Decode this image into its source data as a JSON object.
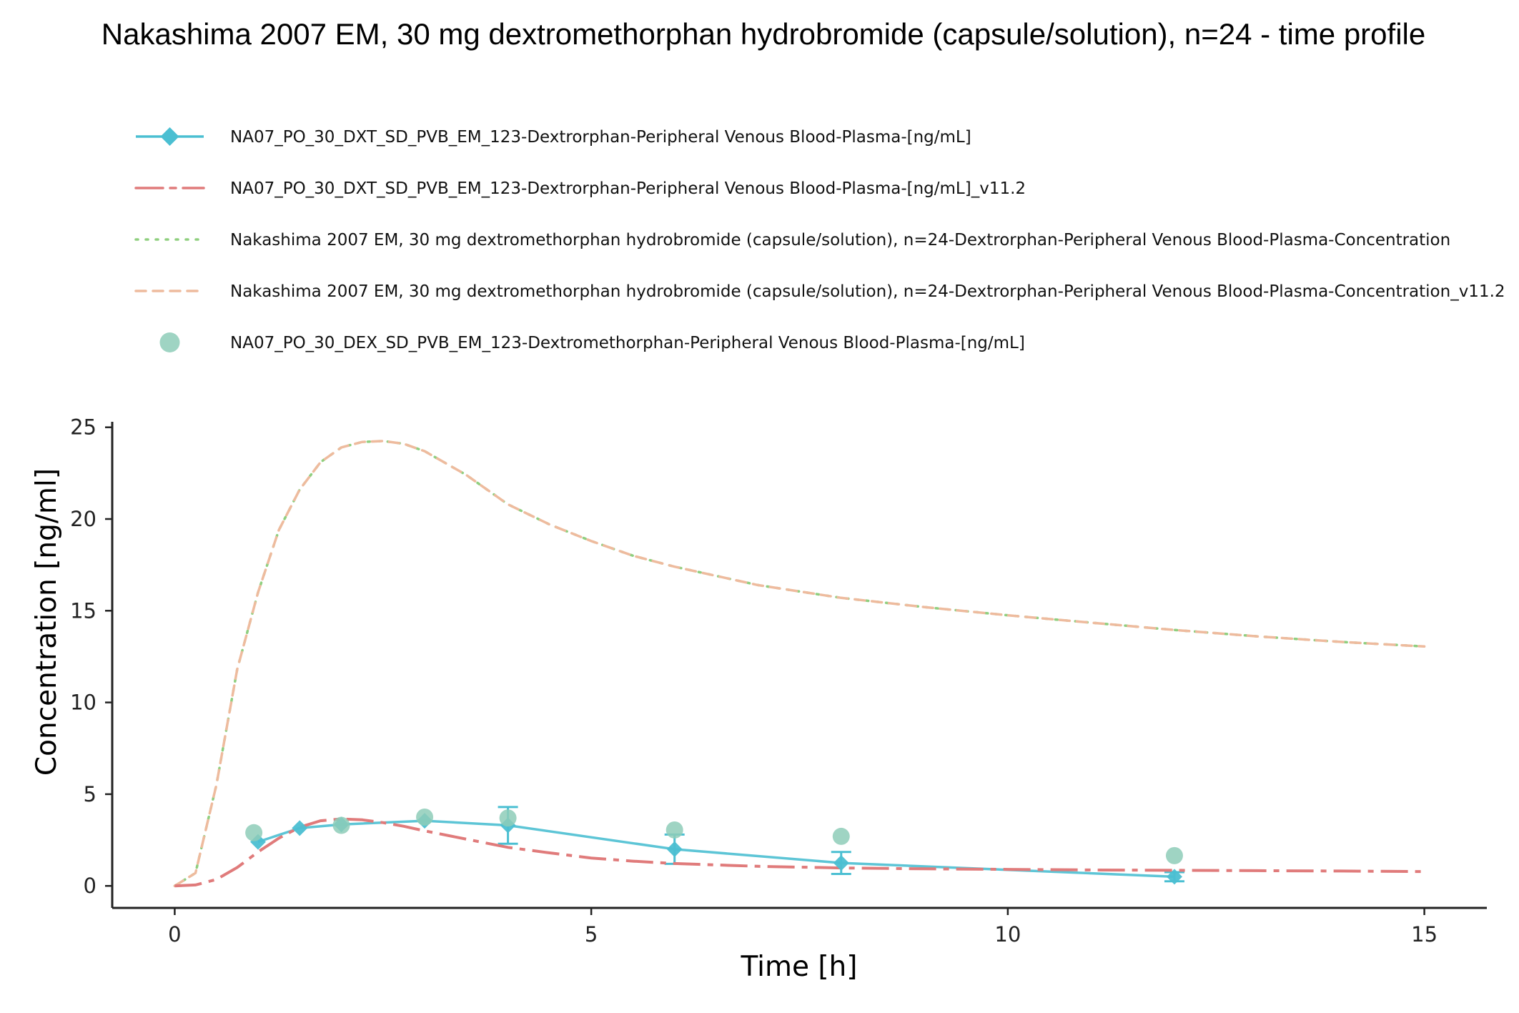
{
  "chart_data": {
    "type": "line",
    "title": "Nakashima 2007 EM, 30 mg dextromethorphan hydrobromide (capsule/solution), n=24 - time profile",
    "xlabel": "Time [h]",
    "ylabel": "Concentration [ng/ml]",
    "xlim": [
      -0.75,
      15.75
    ],
    "ylim": [
      -1.2,
      25.3
    ],
    "xticks": [
      0,
      5,
      10,
      15
    ],
    "xtick_labels": [
      "0",
      "5",
      "10",
      "15"
    ],
    "yticks": [
      0,
      5,
      10,
      15,
      20,
      25
    ],
    "ytick_labels": [
      "0",
      "5",
      "10",
      "15",
      "20",
      "25"
    ],
    "grid": false,
    "legend_position": "top",
    "series": [
      {
        "name": "NA07_PO_30_DXT_SD_PVB_EM_123-Dextrorphan-Peripheral Venous Blood-Plasma-[ng/mL]",
        "kind": "observed-errorbar",
        "color": "#4bbfd2",
        "marker": "diamond",
        "x": [
          1.0,
          1.5,
          2.0,
          3.0,
          4.0,
          6.0,
          8.0,
          12.0
        ],
        "y": [
          2.4,
          3.15,
          3.35,
          3.55,
          3.3,
          2.0,
          1.25,
          0.5
        ],
        "yerr": [
          0,
          0,
          0,
          0,
          1.0,
          0.8,
          0.6,
          0.25
        ]
      },
      {
        "name": "NA07_PO_30_DXT_SD_PVB_EM_123-Dextrorphan-Peripheral Venous Blood-Plasma-[ng/mL]_v11.2",
        "kind": "simulated-longdash",
        "color": "#e07b7b",
        "x": [
          0,
          0.25,
          0.5,
          0.75,
          1.0,
          1.25,
          1.5,
          1.75,
          2.0,
          2.25,
          2.5,
          2.75,
          3.0,
          3.5,
          4.0,
          4.5,
          5.0,
          5.5,
          6.0,
          7.0,
          8.0,
          9.0,
          10.0,
          11.0,
          12.0,
          13.0,
          14.0,
          15.0
        ],
        "y": [
          0,
          0.05,
          0.35,
          1.0,
          1.85,
          2.6,
          3.2,
          3.55,
          3.65,
          3.6,
          3.45,
          3.25,
          3.0,
          2.55,
          2.1,
          1.8,
          1.52,
          1.35,
          1.22,
          1.07,
          0.98,
          0.93,
          0.9,
          0.87,
          0.85,
          0.83,
          0.81,
          0.78
        ]
      },
      {
        "name": "Nakashima 2007 EM, 30 mg dextromethorphan hydrobromide (capsule/solution), n=24-Dextrorphan-Peripheral Venous Blood-Plasma-Concentration",
        "kind": "simulated-dotted",
        "color": "#8fcf7f",
        "x": [
          0,
          0.25,
          0.5,
          0.75,
          1.0,
          1.25,
          1.5,
          1.75,
          2.0,
          2.25,
          2.5,
          2.75,
          3.0,
          3.5,
          4.0,
          4.5,
          5.0,
          5.5,
          6.0,
          7.0,
          8.0,
          9.0,
          10.0,
          11.0,
          12.0,
          13.0,
          14.0,
          15.0
        ],
        "y": [
          0,
          0.7,
          5.5,
          11.8,
          16.0,
          19.4,
          21.6,
          23.1,
          23.9,
          24.2,
          24.25,
          24.1,
          23.7,
          22.4,
          20.8,
          19.7,
          18.8,
          18.0,
          17.4,
          16.4,
          15.7,
          15.2,
          14.75,
          14.35,
          13.95,
          13.6,
          13.3,
          13.05
        ]
      },
      {
        "name": "Nakashima 2007 EM, 30 mg dextromethorphan hydrobromide (capsule/solution), n=24-Dextrorphan-Peripheral Venous Blood-Plasma-Concentration_v11.2",
        "kind": "simulated-dashed",
        "color": "#eebb9e",
        "x": [
          0,
          0.25,
          0.5,
          0.75,
          1.0,
          1.25,
          1.5,
          1.75,
          2.0,
          2.25,
          2.5,
          2.75,
          3.0,
          3.5,
          4.0,
          4.5,
          5.0,
          5.5,
          6.0,
          7.0,
          8.0,
          9.0,
          10.0,
          11.0,
          12.0,
          13.0,
          14.0,
          15.0
        ],
        "y": [
          0,
          0.7,
          5.5,
          11.8,
          16.0,
          19.4,
          21.6,
          23.1,
          23.9,
          24.2,
          24.25,
          24.1,
          23.7,
          22.4,
          20.8,
          19.7,
          18.8,
          18.0,
          17.4,
          16.4,
          15.7,
          15.2,
          14.75,
          14.35,
          13.95,
          13.6,
          13.3,
          13.05
        ]
      },
      {
        "name": "NA07_PO_30_DEX_SD_PVB_EM_123-Dextromethorphan-Peripheral Venous Blood-Plasma-[ng/mL]",
        "kind": "observed-point",
        "color": "#8ecdb8",
        "marker": "circle",
        "x": [
          0.95,
          2.0,
          3.0,
          4.0,
          6.0,
          8.0,
          12.0
        ],
        "y": [
          2.9,
          3.3,
          3.75,
          3.7,
          3.05,
          2.7,
          1.65
        ]
      }
    ]
  }
}
